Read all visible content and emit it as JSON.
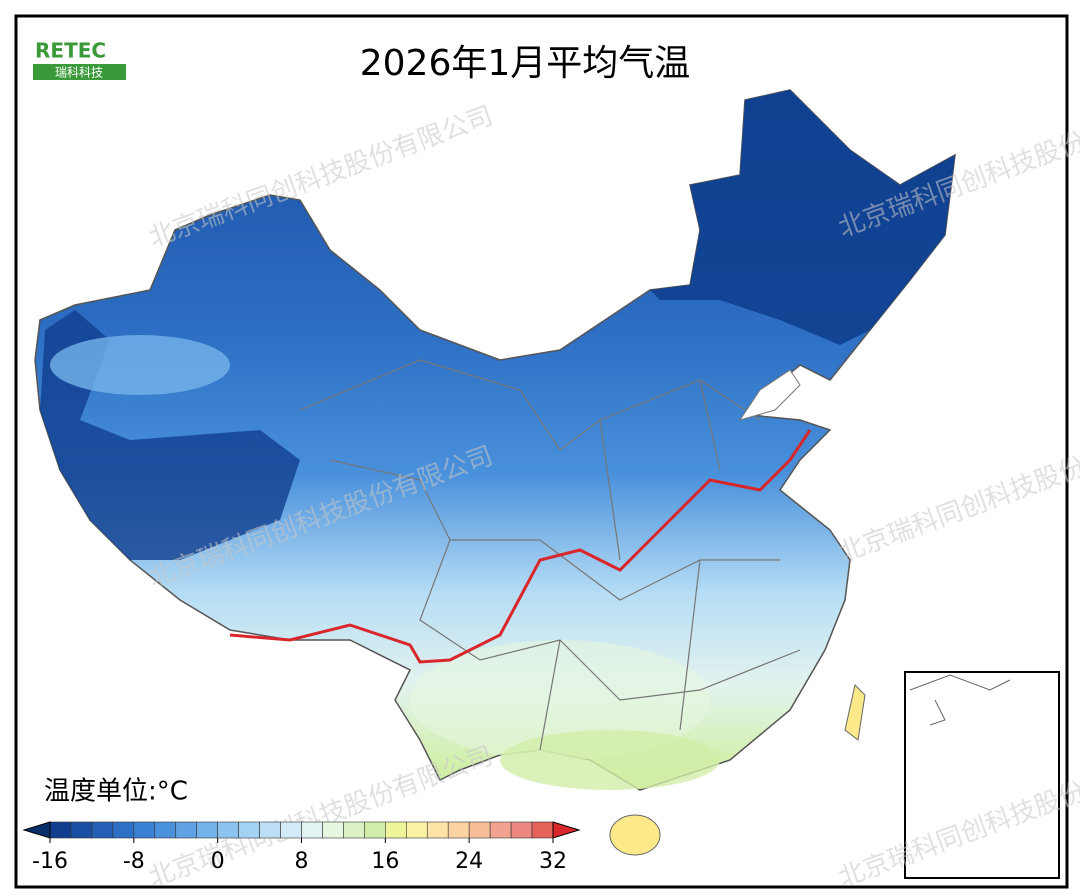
{
  "header": {
    "title": "2026年1月平均气温",
    "logo": "RETEC",
    "logo_sub": "瑞科科技"
  },
  "watermark": "北京瑞科同创科技股份有限公司",
  "legend": {
    "unit_label": "温度单位:°C",
    "ticks": [
      -16,
      -8,
      0,
      8,
      16,
      24,
      32
    ],
    "levels": [
      -16,
      -14,
      -12,
      -10,
      -8,
      -6,
      -4,
      -2,
      0,
      2,
      4,
      6,
      8,
      10,
      12,
      14,
      16,
      18,
      20,
      22,
      24,
      26,
      28,
      30,
      32
    ],
    "colors": [
      "#103f8f",
      "#1a4fa3",
      "#2460b6",
      "#2d70c6",
      "#3a80d3",
      "#4a91dc",
      "#5ea2e3",
      "#74b3ea",
      "#8cc3ef",
      "#a4d2f3",
      "#bcdff6",
      "#d3ebf8",
      "#e3f3f3",
      "#e6f6e0",
      "#dcf2c4",
      "#d2eea8",
      "#eef59a",
      "#fbf3a3",
      "#fde4a6",
      "#fbd3a0",
      "#f7bf98",
      "#f2a38f",
      "#ec8880",
      "#e4625a"
    ]
  }
}
